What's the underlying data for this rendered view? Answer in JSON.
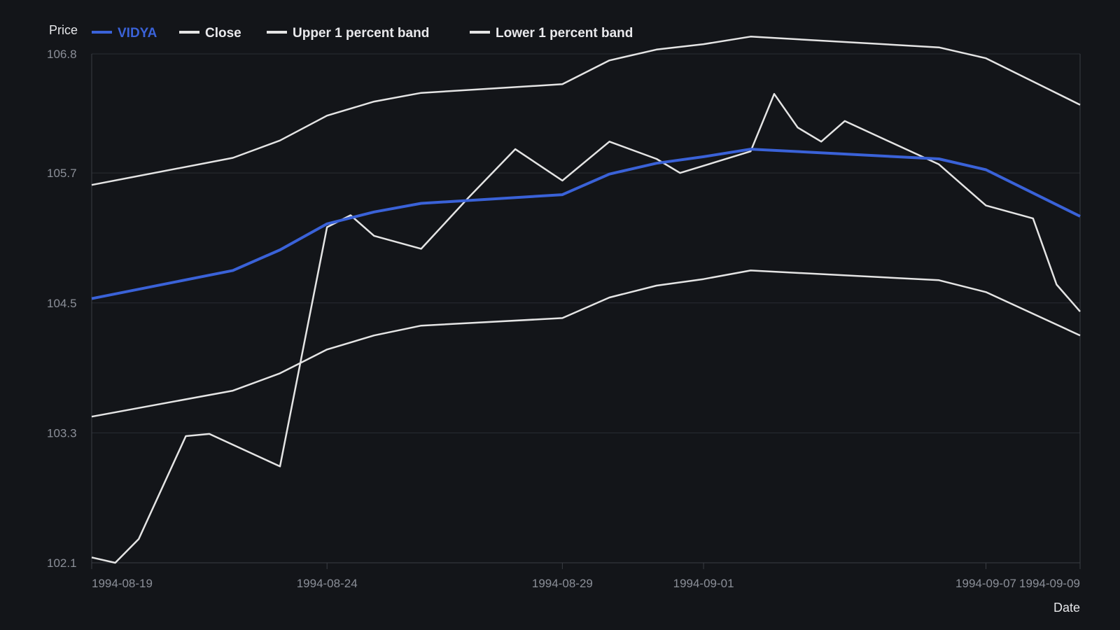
{
  "chart_data": {
    "type": "line",
    "ylabel": "Price",
    "xlabel": "Date",
    "ylim": [
      102.1,
      106.8
    ],
    "y_ticks": [
      "106.8",
      "105.7",
      "104.5",
      "103.3",
      "102.1"
    ],
    "x_ticks": [
      "1994-08-19",
      "1994-08-24",
      "1994-08-29",
      "1994-09-01",
      "1994-09-07",
      "1994-09-09"
    ],
    "grid": true,
    "legend_position": "top-left",
    "series": [
      {
        "name": "VIDYA",
        "color": "#3a62d8",
        "points": [
          [
            "1994-08-19",
            104.54
          ],
          [
            "1994-08-22",
            104.8
          ],
          [
            "1994-08-23",
            104.99
          ],
          [
            "1994-08-24",
            105.23
          ],
          [
            "1994-08-25",
            105.34
          ],
          [
            "1994-08-26",
            105.42
          ],
          [
            "1994-08-29",
            105.5
          ],
          [
            "1994-08-30",
            105.69
          ],
          [
            "1994-08-31",
            105.79
          ],
          [
            "1994-09-01",
            105.85
          ],
          [
            "1994-09-02",
            105.92
          ],
          [
            "1994-09-06",
            105.83
          ],
          [
            "1994-09-07",
            105.73
          ],
          [
            "1994-09-09",
            105.3
          ]
        ]
      },
      {
        "name": "Close",
        "color": "#e4e4e4",
        "points": [
          [
            "1994-08-19",
            102.15
          ],
          [
            "1994-08-19",
            102.1
          ],
          [
            "1994-08-20",
            102.32
          ],
          [
            "1994-08-21",
            103.27
          ],
          [
            "1994-08-21",
            103.29
          ],
          [
            "1994-08-23",
            102.99
          ],
          [
            "1994-08-24",
            105.2
          ],
          [
            "1994-08-24",
            105.31
          ],
          [
            "1994-08-25",
            105.12
          ],
          [
            "1994-08-26",
            105.0
          ],
          [
            "1994-08-27",
            105.47
          ],
          [
            "1994-08-28",
            105.92
          ],
          [
            "1994-08-29",
            105.63
          ],
          [
            "1994-08-30",
            105.99
          ],
          [
            "1994-08-31",
            105.83
          ],
          [
            "1994-08-31",
            105.7
          ],
          [
            "1994-09-02",
            105.9
          ],
          [
            "1994-09-02",
            106.43
          ],
          [
            "1994-09-03",
            106.12
          ],
          [
            "1994-09-03",
            105.99
          ],
          [
            "1994-09-04",
            106.18
          ],
          [
            "1994-09-06",
            105.78
          ],
          [
            "1994-09-07",
            105.4
          ],
          [
            "1994-09-08",
            105.28
          ],
          [
            "1994-09-08",
            104.67
          ],
          [
            "1994-09-09",
            104.42
          ]
        ]
      },
      {
        "name": "Upper 1 percent band",
        "color": "#e4e4e4",
        "points": [
          [
            "1994-08-19",
            105.59
          ],
          [
            "1994-08-22",
            105.84
          ],
          [
            "1994-08-23",
            106.0
          ],
          [
            "1994-08-24",
            106.23
          ],
          [
            "1994-08-25",
            106.36
          ],
          [
            "1994-08-26",
            106.44
          ],
          [
            "1994-08-29",
            106.52
          ],
          [
            "1994-08-30",
            106.74
          ],
          [
            "1994-08-31",
            106.84
          ],
          [
            "1994-09-01",
            106.89
          ],
          [
            "1994-09-02",
            106.96
          ],
          [
            "1994-09-06",
            106.86
          ],
          [
            "1994-09-07",
            106.76
          ],
          [
            "1994-09-09",
            106.33
          ]
        ]
      },
      {
        "name": "Lower 1 percent band",
        "color": "#e4e4e4",
        "points": [
          [
            "1994-08-19",
            103.45
          ],
          [
            "1994-08-22",
            103.69
          ],
          [
            "1994-08-23",
            103.85
          ],
          [
            "1994-08-24",
            104.07
          ],
          [
            "1994-08-25",
            104.2
          ],
          [
            "1994-08-26",
            104.29
          ],
          [
            "1994-08-29",
            104.36
          ],
          [
            "1994-08-30",
            104.55
          ],
          [
            "1994-08-31",
            104.66
          ],
          [
            "1994-09-01",
            104.72
          ],
          [
            "1994-09-02",
            104.8
          ],
          [
            "1994-09-06",
            104.71
          ],
          [
            "1994-09-07",
            104.6
          ],
          [
            "1994-09-09",
            104.2
          ]
        ]
      }
    ]
  }
}
